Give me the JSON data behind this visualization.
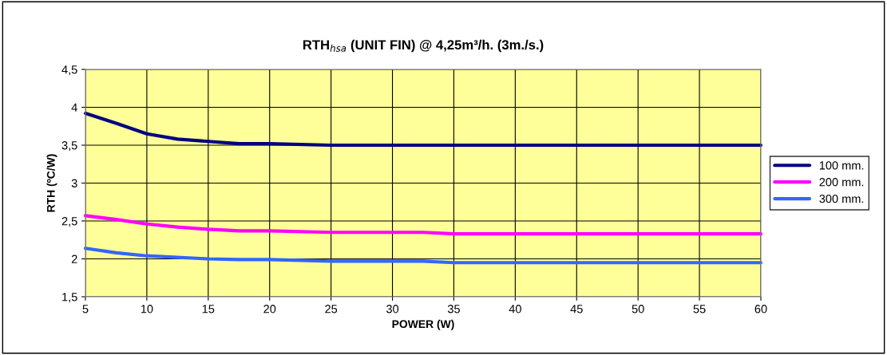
{
  "chart_data": {
    "type": "line",
    "title": "RTH$_{hsa}$ (UNIT FIN) @ 4,25m³/h. (3m./s.)",
    "xlabel": "POWER (W)",
    "ylabel": "RTH (ºC/W)",
    "x": [
      5,
      7.5,
      10,
      12.5,
      15,
      17.5,
      20,
      25,
      30,
      32.5,
      35,
      40,
      45,
      50,
      55,
      60
    ],
    "series": [
      {
        "name": "100 mm.",
        "color": "#000080",
        "values": [
          3.92,
          3.79,
          3.65,
          3.58,
          3.55,
          3.52,
          3.52,
          3.5,
          3.5,
          3.5,
          3.5,
          3.5,
          3.5,
          3.5,
          3.5,
          3.5
        ]
      },
      {
        "name": "200 mm.",
        "color": "#ff00ff",
        "values": [
          2.57,
          2.52,
          2.46,
          2.42,
          2.39,
          2.37,
          2.37,
          2.35,
          2.35,
          2.35,
          2.33,
          2.33,
          2.33,
          2.33,
          2.33,
          2.33
        ]
      },
      {
        "name": "300 mm.",
        "color": "#3366ff",
        "values": [
          2.14,
          2.08,
          2.04,
          2.02,
          2.0,
          1.99,
          1.99,
          1.97,
          1.97,
          1.97,
          1.95,
          1.95,
          1.95,
          1.95,
          1.95,
          1.95
        ]
      }
    ],
    "xlim": [
      5,
      60
    ],
    "xticks": [
      5,
      10,
      15,
      20,
      25,
      30,
      35,
      40,
      45,
      50,
      55,
      60
    ],
    "ylim": [
      1.5,
      4.5
    ],
    "yticks": [
      {
        "value": 1.5,
        "label": "1,5"
      },
      2,
      {
        "value": 2.5,
        "label": "2,5"
      },
      3,
      {
        "value": 3.5,
        "label": "3,5"
      },
      4,
      {
        "value": 4.5,
        "label": "4,5"
      }
    ],
    "grid": true,
    "legend": "right",
    "marker": "none",
    "line_style": "solid"
  }
}
